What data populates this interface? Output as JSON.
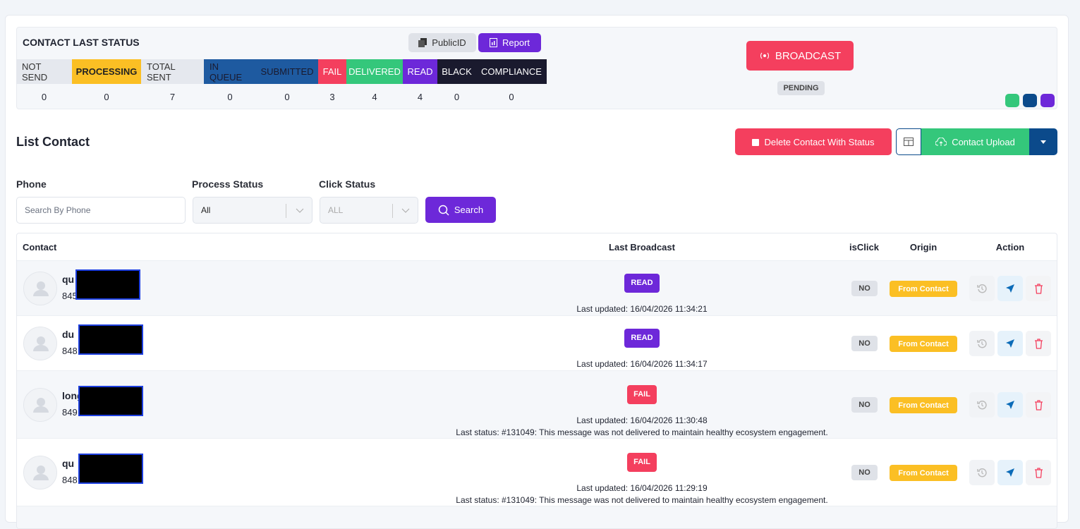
{
  "header": {
    "title": "CONTACT LAST STATUS",
    "public_id": "PublicID",
    "report": "Report"
  },
  "status": {
    "columns": [
      {
        "label": "NOT SEND",
        "count": 0,
        "color": "#e5e8ee",
        "text_color": "#333"
      },
      {
        "label": "PROCESSING",
        "count": 0,
        "color": "#fbbf24",
        "text_color": "#222"
      },
      {
        "label": "TOTAL SENT",
        "count": 7,
        "color": "#e5e8ee",
        "text_color": "#333"
      },
      {
        "label": "IN QUEUE",
        "count": 0,
        "color": "#1e5aa0",
        "text_color": "#1a1a2e"
      },
      {
        "label": "SUBMITTED",
        "count": 0,
        "color": "#1e5aa0",
        "text_color": "#1a1a2e"
      },
      {
        "label": "FAIL",
        "count": 3,
        "color": "#f43f5e",
        "text_color": "#fff"
      },
      {
        "label": "DELIVERED",
        "count": 4,
        "color": "#34c77b",
        "text_color": "#fff"
      },
      {
        "label": "READ",
        "count": 4,
        "color": "#6d28d9",
        "text_color": "#fff"
      },
      {
        "label": "BLACK",
        "count": 0,
        "color": "#1a1a2e",
        "text_color": "#fff"
      },
      {
        "label": "COMPLIANCE",
        "count": 0,
        "color": "#1a1a2e",
        "text_color": "#fff"
      }
    ]
  },
  "broadcast": {
    "button": "BROADCAST",
    "state": "PENDING"
  },
  "list": {
    "title": "List Contact",
    "delete_button": "Delete Contact With Status",
    "upload_button": "Contact Upload"
  },
  "filters": {
    "phone_label": "Phone",
    "phone_placeholder": "Search By Phone",
    "process_label": "Process Status",
    "process_value": "All",
    "click_label": "Click Status",
    "click_value": "ALL",
    "search_button": "Search"
  },
  "table": {
    "headers": [
      "Contact",
      "Last Broadcast",
      "isClick",
      "Origin",
      "Action"
    ],
    "rows": [
      {
        "name": "qu",
        "phone": "845",
        "status": "READ",
        "badge_color": "#6d28d9",
        "updated": "Last updated: 16/04/2026 11:34:21",
        "is_click": "NO",
        "origin": "From Contact"
      },
      {
        "name": "du",
        "phone": "848",
        "status": "READ",
        "badge_color": "#6d28d9",
        "updated": "Last updated: 16/04/2026 11:34:17",
        "is_click": "NO",
        "origin": "From Contact"
      },
      {
        "name": "long",
        "phone": "849",
        "status": "FAIL",
        "badge_color": "#f43f5e",
        "updated": "Last updated: 16/04/2026 11:30:48",
        "note": "Last status: #131049: This message was not delivered to maintain healthy ecosystem engagement.",
        "is_click": "NO",
        "origin": "From Contact"
      },
      {
        "name": "qu",
        "phone": "848",
        "status": "FAIL",
        "badge_color": "#f43f5e",
        "updated": "Last updated: 16/04/2026 11:29:19",
        "note": "Last status: #131049: This message was not delivered to maintain healthy ecosystem engagement.",
        "is_click": "NO",
        "origin": "From Contact"
      }
    ]
  }
}
